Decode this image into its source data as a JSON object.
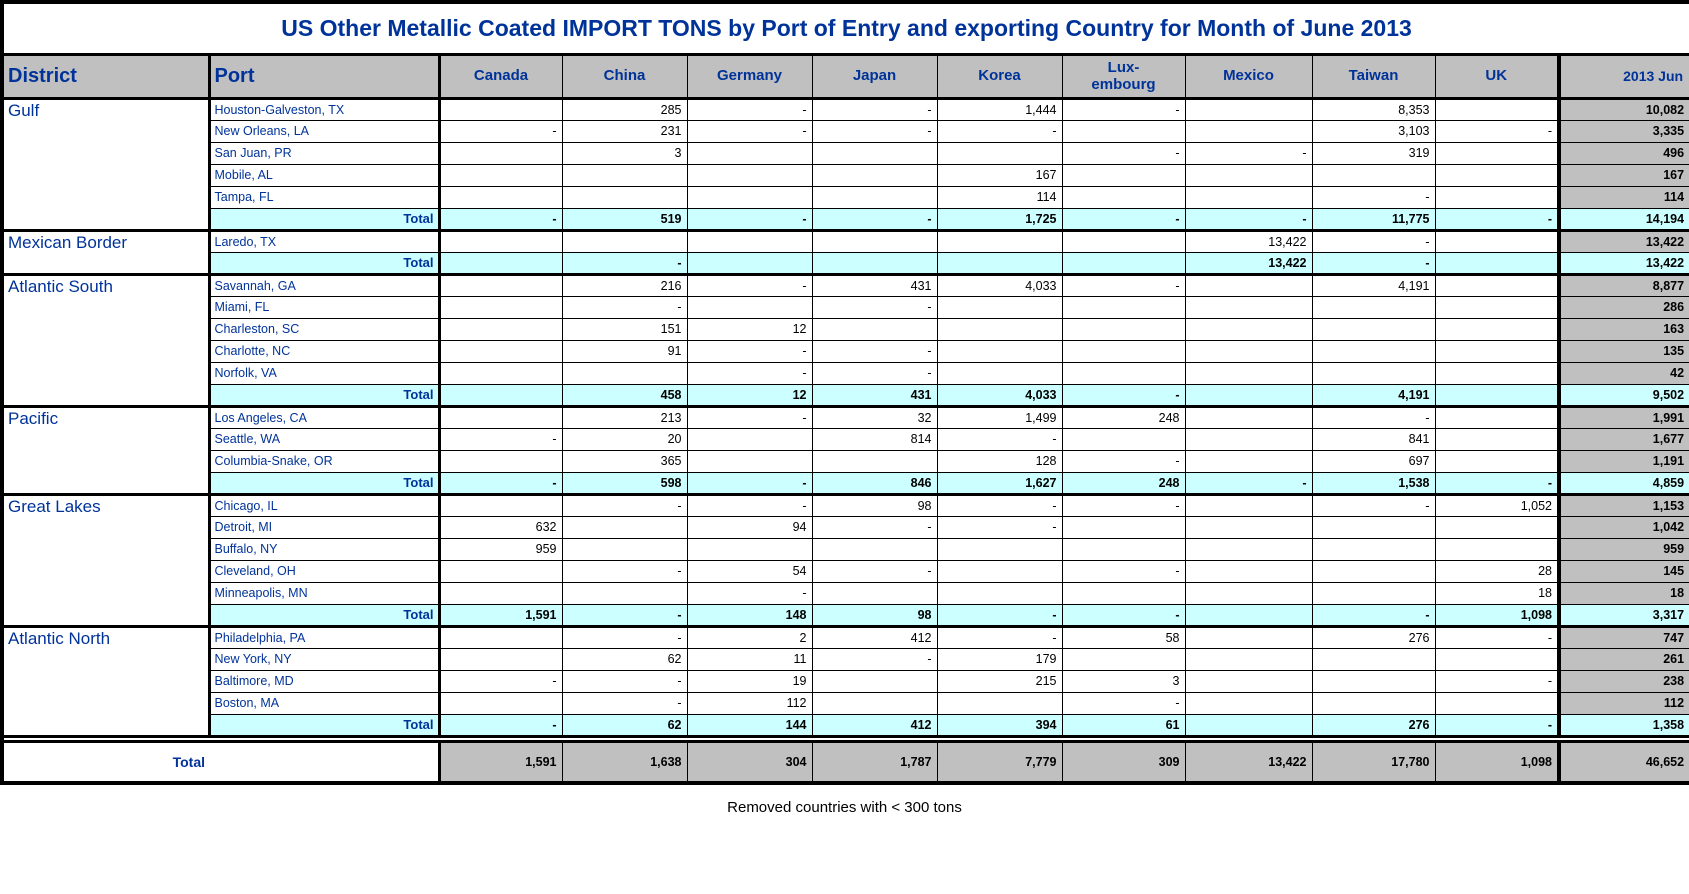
{
  "title": "US Other Metallic Coated IMPORT TONS by Port of Entry and exporting Country for Month of June 2013",
  "footer_note": "Removed countries with < 300 tons",
  "colors": {
    "navy": "#003399",
    "header_bg": "#c0c0c0",
    "total_row_bg": "#ccffff",
    "border": "#000000"
  },
  "table": {
    "district_header": "District",
    "port_header": "Port",
    "country_headers": [
      "Canada",
      "China",
      "Germany",
      "Japan",
      "Korea",
      "Lux-\nembourg",
      "Mexico",
      "Taiwan",
      "UK"
    ],
    "period_header": "2013 Jun",
    "total_label": "Total",
    "grand_total_label": "Total",
    "districts": [
      {
        "name": "Gulf",
        "ports": [
          {
            "port": "Houston-Galveston, TX",
            "values": [
              "",
              "285",
              "-",
              "-",
              "1,444",
              "-",
              "",
              "8,353",
              ""
            ],
            "total": "10,082"
          },
          {
            "port": "New Orleans, LA",
            "values": [
              "-",
              "231",
              "-",
              "-",
              "-",
              "",
              "",
              "3,103",
              "-"
            ],
            "total": "3,335"
          },
          {
            "port": "San Juan, PR",
            "values": [
              "",
              "3",
              "",
              "",
              "",
              "-",
              "-",
              "319",
              ""
            ],
            "total": "496"
          },
          {
            "port": "Mobile, AL",
            "values": [
              "",
              "",
              "",
              "",
              "167",
              "",
              "",
              "",
              ""
            ],
            "total": "167"
          },
          {
            "port": "Tampa, FL",
            "values": [
              "",
              "",
              "",
              "",
              "114",
              "",
              "",
              "-",
              ""
            ],
            "total": "114"
          }
        ],
        "totals": [
          "-",
          "519",
          "-",
          "-",
          "1,725",
          "-",
          "-",
          "11,775",
          "-"
        ],
        "district_total": "14,194"
      },
      {
        "name": "Mexican Border",
        "ports": [
          {
            "port": "Laredo, TX",
            "values": [
              "",
              "",
              "",
              "",
              "",
              "",
              "13,422",
              "-",
              ""
            ],
            "total": "13,422"
          }
        ],
        "totals": [
          "",
          "-",
          "",
          "",
          "",
          "",
          "13,422",
          "-",
          ""
        ],
        "district_total": "13,422"
      },
      {
        "name": "Atlantic South",
        "ports": [
          {
            "port": "Savannah, GA",
            "values": [
              "",
              "216",
              "-",
              "431",
              "4,033",
              "-",
              "",
              "4,191",
              ""
            ],
            "total": "8,877"
          },
          {
            "port": "Miami, FL",
            "values": [
              "",
              "-",
              "",
              "-",
              "",
              "",
              "",
              "",
              ""
            ],
            "total": "286"
          },
          {
            "port": "Charleston, SC",
            "values": [
              "",
              "151",
              "12",
              "",
              "",
              "",
              "",
              "",
              ""
            ],
            "total": "163"
          },
          {
            "port": "Charlotte, NC",
            "values": [
              "",
              "91",
              "-",
              "-",
              "",
              "",
              "",
              "",
              ""
            ],
            "total": "135"
          },
          {
            "port": "Norfolk, VA",
            "values": [
              "",
              "",
              "-",
              "-",
              "",
              "",
              "",
              "",
              ""
            ],
            "total": "42"
          }
        ],
        "totals": [
          "",
          "458",
          "12",
          "431",
          "4,033",
          "-",
          "",
          "4,191",
          ""
        ],
        "district_total": "9,502"
      },
      {
        "name": "Pacific",
        "ports": [
          {
            "port": "Los Angeles, CA",
            "values": [
              "",
              "213",
              "-",
              "32",
              "1,499",
              "248",
              "",
              "-",
              ""
            ],
            "total": "1,991"
          },
          {
            "port": "Seattle, WA",
            "values": [
              "-",
              "20",
              "",
              "814",
              "-",
              "",
              "",
              "841",
              ""
            ],
            "total": "1,677"
          },
          {
            "port": "Columbia-Snake, OR",
            "values": [
              "",
              "365",
              "",
              "",
              "128",
              "-",
              "",
              "697",
              ""
            ],
            "total": "1,191"
          }
        ],
        "totals": [
          "-",
          "598",
          "-",
          "846",
          "1,627",
          "248",
          "-",
          "1,538",
          "-"
        ],
        "district_total": "4,859"
      },
      {
        "name": "Great Lakes",
        "ports": [
          {
            "port": "Chicago, IL",
            "values": [
              "",
              "-",
              "-",
              "98",
              "-",
              "-",
              "",
              "-",
              "1,052"
            ],
            "total": "1,153"
          },
          {
            "port": "Detroit, MI",
            "values": [
              "632",
              "",
              "94",
              "-",
              "-",
              "",
              "",
              "",
              ""
            ],
            "total": "1,042"
          },
          {
            "port": "Buffalo, NY",
            "values": [
              "959",
              "",
              "",
              "",
              "",
              "",
              "",
              "",
              ""
            ],
            "total": "959"
          },
          {
            "port": "Cleveland, OH",
            "values": [
              "",
              "-",
              "54",
              "-",
              "",
              "-",
              "",
              "",
              "28"
            ],
            "total": "145"
          },
          {
            "port": "Minneapolis, MN",
            "values": [
              "",
              "",
              "-",
              "",
              "",
              "",
              "",
              "",
              "18"
            ],
            "total": "18"
          }
        ],
        "totals": [
          "1,591",
          "-",
          "148",
          "98",
          "-",
          "-",
          "",
          "-",
          "1,098"
        ],
        "district_total": "3,317"
      },
      {
        "name": "Atlantic North",
        "ports": [
          {
            "port": "Philadelphia, PA",
            "values": [
              "",
              "-",
              "2",
              "412",
              "-",
              "58",
              "",
              "276",
              "-"
            ],
            "total": "747"
          },
          {
            "port": "New York, NY",
            "values": [
              "",
              "62",
              "11",
              "-",
              "179",
              "",
              "",
              "",
              ""
            ],
            "total": "261"
          },
          {
            "port": "Baltimore, MD",
            "values": [
              "-",
              "-",
              "19",
              "",
              "215",
              "3",
              "",
              "",
              "-"
            ],
            "total": "238"
          },
          {
            "port": "Boston, MA",
            "values": [
              "",
              "-",
              "112",
              "",
              "",
              "-",
              "",
              "",
              ""
            ],
            "total": "112"
          }
        ],
        "totals": [
          "-",
          "62",
          "144",
          "412",
          "394",
          "61",
          "",
          "276",
          "-"
        ],
        "district_total": "1,358"
      }
    ],
    "grand_totals": [
      "1,591",
      "1,638",
      "304",
      "1,787",
      "7,779",
      "309",
      "13,422",
      "17,780",
      "1,098"
    ],
    "grand_total": "46,652"
  }
}
